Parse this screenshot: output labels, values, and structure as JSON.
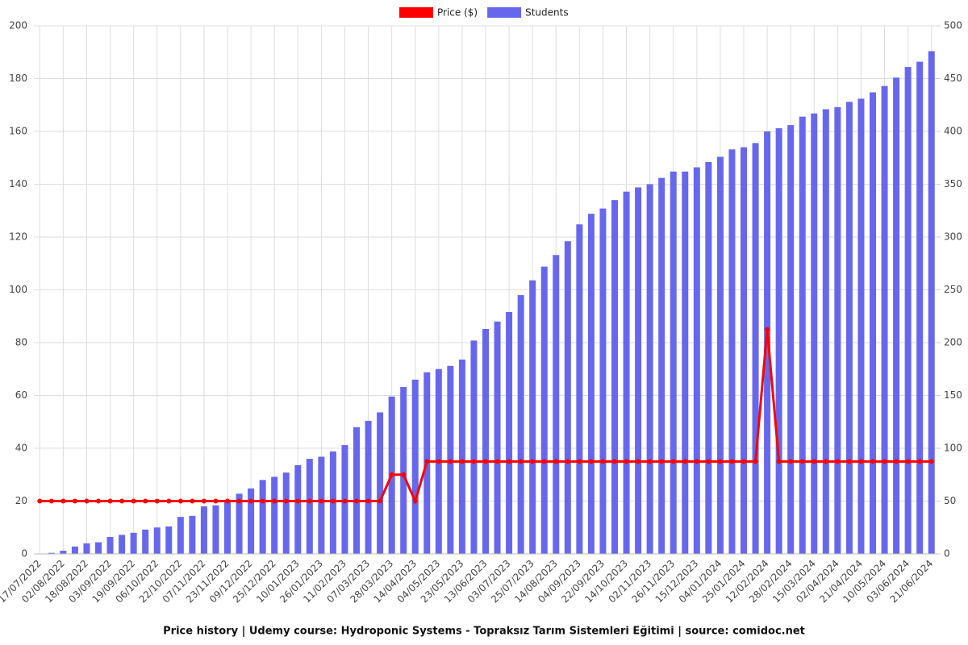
{
  "chart_data": {
    "type": "bar-line",
    "title": "Price history | Udemy course: Hydroponic Systems - Topraksız Tarım Sistemleri Eğitimi | source: comidoc.net",
    "categories": [
      "17/07/2022",
      null,
      "02/08/2022",
      null,
      "18/08/2022",
      null,
      "03/09/2022",
      null,
      "19/09/2022",
      null,
      "06/10/2022",
      null,
      "22/10/2022",
      null,
      "07/11/2022",
      null,
      "23/11/2022",
      null,
      "09/12/2022",
      null,
      "25/12/2022",
      null,
      "10/01/2023",
      null,
      "26/01/2023",
      null,
      "11/02/2023",
      null,
      "07/03/2023",
      null,
      "28/03/2023",
      null,
      "14/04/2023",
      null,
      "04/05/2023",
      null,
      "23/05/2023",
      null,
      "13/06/2023",
      null,
      "03/07/2023",
      null,
      "25/07/2023",
      null,
      "14/08/2023",
      null,
      "04/09/2023",
      null,
      "22/09/2023",
      null,
      "14/10/2023",
      null,
      "02/11/2023",
      null,
      "26/11/2023",
      null,
      "15/12/2023",
      null,
      "04/01/2024",
      null,
      "25/01/2024",
      null,
      "12/02/2024",
      null,
      "28/02/2024",
      null,
      "15/03/2024",
      null,
      "02/04/2024",
      null,
      "21/04/2024",
      null,
      "10/05/2024",
      null,
      "03/06/2024",
      null,
      "21/06/2024"
    ],
    "series": [
      {
        "name": "Price ($)",
        "color": "#ff0000",
        "kind": "line",
        "values": [
          19.99,
          19.99,
          19.99,
          19.99,
          19.99,
          19.99,
          19.99,
          19.99,
          19.99,
          19.99,
          19.99,
          19.99,
          19.99,
          19.99,
          19.99,
          19.99,
          19.99,
          19.99,
          19.99,
          19.99,
          19.99,
          19.99,
          19.99,
          19.99,
          19.99,
          19.99,
          19.99,
          19.99,
          19.99,
          19.99,
          29.99,
          29.99,
          19.99,
          34.99,
          34.99,
          34.99,
          34.99,
          34.99,
          34.99,
          34.99,
          34.99,
          34.99,
          34.99,
          34.99,
          34.99,
          34.99,
          34.99,
          34.99,
          34.99,
          34.99,
          34.99,
          34.99,
          34.99,
          34.99,
          34.99,
          34.99,
          34.99,
          34.99,
          34.99,
          34.99,
          34.99,
          34.99,
          84.99,
          34.99,
          34.99,
          34.99,
          34.99,
          34.99,
          34.99,
          34.99,
          34.99,
          34.99,
          34.99,
          34.99,
          34.99,
          34.99,
          34.99
        ]
      },
      {
        "name": "Students",
        "color": "#6767ee",
        "kind": "bar",
        "axis": "y2",
        "values": [
          0,
          1,
          3,
          7,
          10,
          11,
          16,
          18,
          20,
          23,
          25,
          26,
          35,
          36,
          45,
          46,
          51,
          57,
          62,
          70,
          73,
          77,
          84,
          90,
          92,
          97,
          103,
          120,
          126,
          134,
          149,
          158,
          165,
          172,
          175,
          178,
          184,
          202,
          213,
          220,
          229,
          245,
          259,
          272,
          283,
          296,
          312,
          322,
          327,
          335,
          343,
          347,
          350,
          356,
          362,
          362,
          366,
          371,
          376,
          383,
          385,
          389,
          400,
          403,
          406,
          414,
          417,
          421,
          423,
          428,
          431,
          437,
          443,
          451,
          461,
          466,
          476
        ]
      }
    ],
    "ylim": [
      0,
      200
    ],
    "yticks": [
      0,
      20,
      40,
      60,
      80,
      100,
      120,
      140,
      160,
      180,
      200
    ],
    "y2lim": [
      0,
      500
    ],
    "y2ticks": [
      0,
      50,
      100,
      150,
      200,
      250,
      300,
      350,
      400,
      450,
      500
    ],
    "grid": true,
    "legend": "top"
  }
}
